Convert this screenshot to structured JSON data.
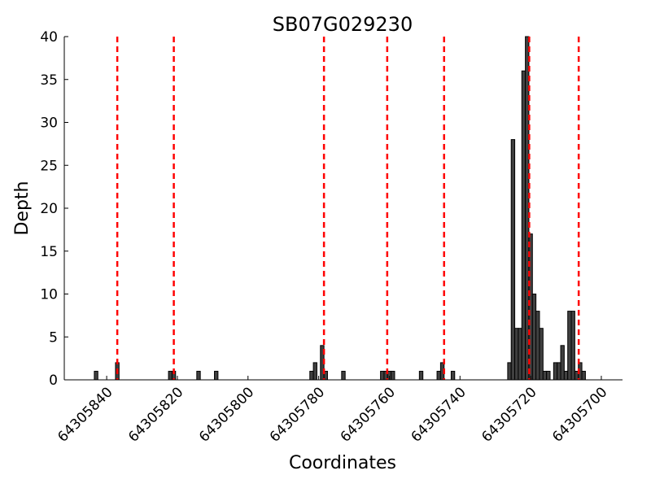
{
  "chart_data": {
    "type": "bar",
    "title": "SB07G029230",
    "x_label": "Coordinates",
    "y_label": "Depth",
    "x": [
      64305843,
      64305837,
      64305822,
      64305821,
      64305814,
      64305809,
      64305782,
      64305781,
      64305779,
      64305778,
      64305773,
      64305762,
      64305761,
      64305760,
      64305759,
      64305751,
      64305746,
      64305745,
      64305742,
      64305726,
      64305725,
      64305724,
      64305723,
      64305722,
      64305721,
      64305720,
      64305719,
      64305718,
      64305717,
      64305716,
      64305715,
      64305713,
      64305712,
      64305711,
      64305710,
      64305709,
      64305708,
      64305707,
      64305706,
      64305705
    ],
    "values": [
      1,
      2,
      1,
      1,
      1,
      1,
      1,
      2,
      4,
      1,
      1,
      1,
      1,
      1,
      1,
      1,
      1,
      2,
      1,
      2,
      28,
      6,
      6,
      36,
      40,
      17,
      10,
      8,
      6,
      1,
      1,
      2,
      2,
      4,
      1,
      8,
      8,
      1,
      2,
      1
    ],
    "color": "#404040",
    "edge_color": "#000000",
    "vlines": [
      64305837,
      64305821,
      64305778.5,
      64305760.6,
      64305744.5,
      64305720.4,
      64305706.4
    ],
    "vline_color": "#ff0000",
    "xlim": [
      64305852,
      64305694
    ],
    "xticks": [
      64305840,
      64305820,
      64305800,
      64305780,
      64305760,
      64305740,
      64305720,
      64305700
    ],
    "ylim": [
      0,
      40
    ],
    "yticks": [
      0,
      5,
      10,
      15,
      20,
      25,
      30,
      35,
      40
    ]
  }
}
